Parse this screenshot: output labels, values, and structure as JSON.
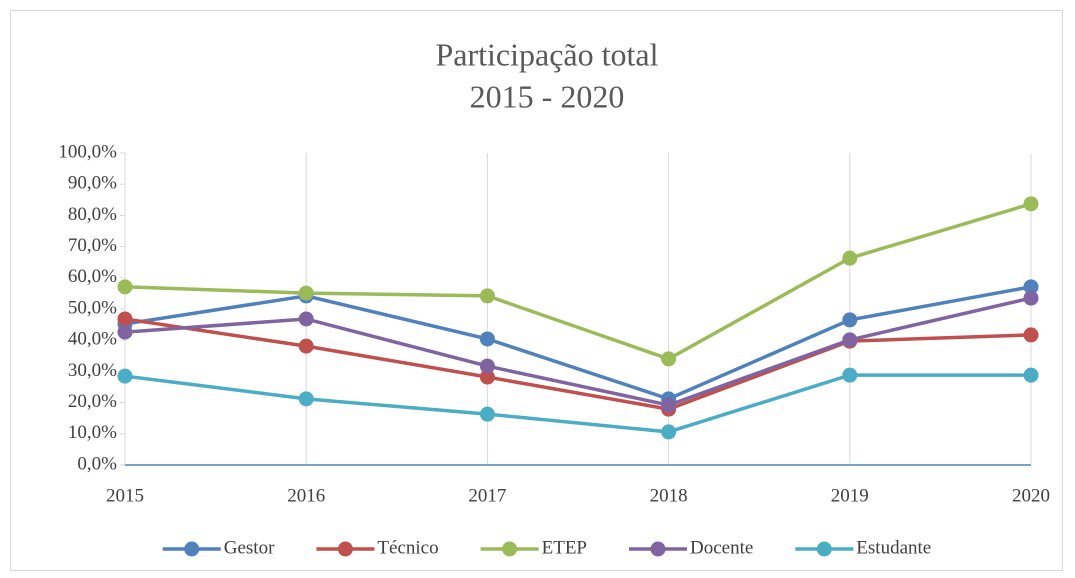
{
  "chart_data": {
    "type": "line",
    "title": "Participação total",
    "subtitle": "2015 - 2020",
    "x": [
      2015,
      2016,
      2017,
      2018,
      2019,
      2020
    ],
    "xlim": [
      2015,
      2020
    ],
    "xticks": [
      2015,
      2016,
      2017,
      2018,
      2019,
      2020
    ],
    "ylim": [
      0,
      100
    ],
    "yticks": [
      {
        "value": 0,
        "label": "0,0%"
      },
      {
        "value": 10,
        "label": "10,0%"
      },
      {
        "value": 20,
        "label": "20,0%"
      },
      {
        "value": 30,
        "label": "30,0%"
      },
      {
        "value": 40,
        "label": "40,0%"
      },
      {
        "value": 50,
        "label": "50,0%"
      },
      {
        "value": 60,
        "label": "60,0%"
      },
      {
        "value": 70,
        "label": "70,0%"
      },
      {
        "value": 80,
        "label": "80,0%"
      },
      {
        "value": 90,
        "label": "90,0%"
      },
      {
        "value": 100,
        "label": "100,0%"
      }
    ],
    "xgrid": true,
    "legend": "bottom",
    "series": [
      {
        "name": "Gestor",
        "color": "#4f81bd",
        "values": [
          45.2,
          54.2,
          40.4,
          21.2,
          46.5,
          57.1
        ]
      },
      {
        "name": "Técnico",
        "color": "#c0504d",
        "values": [
          46.8,
          38.1,
          28.2,
          17.9,
          39.7,
          41.7
        ]
      },
      {
        "name": "ETEP",
        "color": "#9bbb59",
        "values": [
          57.1,
          55.1,
          54.2,
          34.0,
          66.3,
          83.7
        ]
      },
      {
        "name": "Docente",
        "color": "#8064a2",
        "values": [
          42.6,
          46.8,
          31.7,
          19.2,
          40.1,
          53.5
        ]
      },
      {
        "name": "Estudante",
        "color": "#4bacc6",
        "values": [
          28.5,
          21.2,
          16.3,
          10.6,
          28.8,
          28.8
        ]
      }
    ]
  }
}
